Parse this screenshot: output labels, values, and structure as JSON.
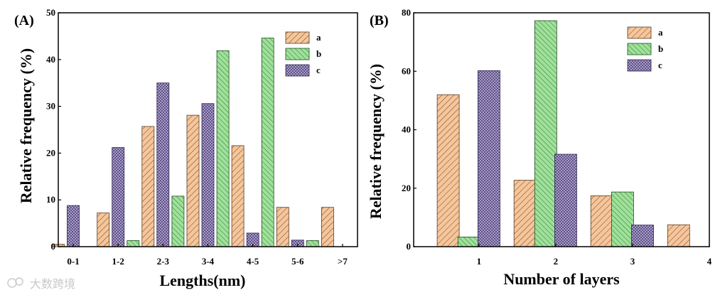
{
  "watermark": "大数跨境",
  "colors": {
    "a": "#f6c59a",
    "b": "#9ee29a",
    "c": "#b4a6d8",
    "a_hatch": "#5a3a1e",
    "b_hatch": "#1f4d1f",
    "c_hatch": "#2d2350"
  },
  "chart_data": [
    {
      "type": "bar",
      "panel_label": "(A)",
      "title": "",
      "xlabel": "Lengths(nm)",
      "ylabel": "Relative frequency (%)",
      "ylim": [
        0,
        50
      ],
      "yticks": [
        "0",
        "10",
        "20",
        "30",
        "40",
        "50"
      ],
      "xticks": [
        "0-1",
        "1-2",
        "2-3",
        "3-4",
        "4-5",
        "5-6",
        ">7"
      ],
      "tick_positions": [
        0.5,
        2,
        3.5,
        5,
        6.5,
        8,
        9.5
      ],
      "xlim": [
        0,
        10
      ],
      "legend_position": "top-right",
      "series": [
        {
          "name": "a",
          "points": [
            [
              0,
              0.5
            ],
            [
              1.5,
              7.2
            ],
            [
              3,
              25.7
            ],
            [
              4.5,
              28.1
            ],
            [
              6,
              21.6
            ],
            [
              7.5,
              8.4
            ],
            [
              9,
              8.4
            ]
          ]
        },
        {
          "name": "b",
          "points": [
            [
              1,
              0
            ],
            [
              2.5,
              1.3
            ],
            [
              4,
              10.8
            ],
            [
              5.5,
              41.9
            ],
            [
              7,
              44.6
            ],
            [
              8.5,
              1.3
            ]
          ]
        },
        {
          "name": "c",
          "points": [
            [
              0.5,
              8.8
            ],
            [
              2,
              21.2
            ],
            [
              3.5,
              35
            ],
            [
              5,
              30.6
            ],
            [
              6.5,
              2.9
            ],
            [
              8,
              1.4
            ]
          ]
        }
      ]
    },
    {
      "type": "bar",
      "panel_label": "(B)",
      "title": "",
      "xlabel": "Number of layers",
      "ylabel": "Relative frequency (%)",
      "ylim": [
        0,
        80
      ],
      "yticks": [
        "0",
        "20",
        "40",
        "60",
        "80"
      ],
      "xticks": [
        "1",
        "2",
        "3",
        "4"
      ],
      "tick_positions": [
        1,
        2,
        3,
        4
      ],
      "xlim": [
        0.15,
        4
      ],
      "legend_position": "top-right",
      "series": [
        {
          "name": "a",
          "points": [
            [
              0.6,
              52
            ],
            [
              1.6,
              22.7
            ],
            [
              2.6,
              17.4
            ],
            [
              3.6,
              7.5
            ]
          ]
        },
        {
          "name": "b",
          "points": [
            [
              0.87,
              3.3
            ],
            [
              1.87,
              77.3
            ],
            [
              2.87,
              18.7
            ]
          ]
        },
        {
          "name": "c",
          "points": [
            [
              1.13,
              60.2
            ],
            [
              2.13,
              31.6
            ],
            [
              3.13,
              7.4
            ]
          ]
        }
      ]
    }
  ]
}
